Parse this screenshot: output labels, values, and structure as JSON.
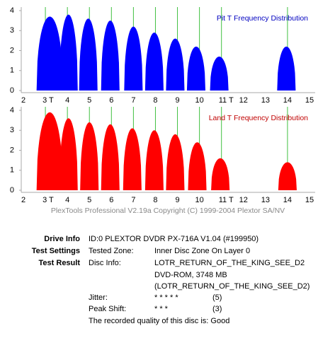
{
  "chart_data": [
    {
      "type": "area",
      "title": "Pit T Frequency Distribution",
      "title_color": "#0000c0",
      "x": [
        3.2,
        4.05,
        4.95,
        5.95,
        7.0,
        7.95,
        8.9,
        9.85,
        10.9,
        13.95
      ],
      "series": [
        {
          "color": "#0000ff",
          "values": [
            3.7,
            3.8,
            3.6,
            3.5,
            3.2,
            2.9,
            2.6,
            2.2,
            1.7,
            2.2
          ]
        }
      ],
      "reference_lines": [
        3,
        4,
        5,
        6,
        7,
        8,
        9,
        10,
        11,
        14
      ],
      "reference_color": "#40c040",
      "xlim": [
        2,
        15
      ],
      "ylim": [
        0,
        4
      ],
      "xticks": [
        2,
        {
          "value": 3,
          "label": "3 T"
        },
        4,
        5,
        6,
        7,
        8,
        9,
        10,
        {
          "value": 11,
          "label": "11 T"
        },
        12,
        13,
        14,
        15
      ],
      "yticks": [
        0,
        1,
        2,
        3,
        4
      ]
    },
    {
      "type": "area",
      "title": "Land T Frequency Distribution",
      "title_color": "#c00000",
      "x": [
        3.2,
        4.05,
        5.0,
        5.95,
        6.95,
        7.95,
        8.9,
        9.9,
        10.95,
        14.0
      ],
      "series": [
        {
          "color": "#ff0000",
          "values": [
            3.9,
            3.6,
            3.4,
            3.3,
            3.1,
            3.0,
            2.8,
            2.4,
            1.6,
            1.4
          ]
        }
      ],
      "reference_lines": [
        3,
        4,
        5,
        6,
        7,
        8,
        9,
        10,
        11,
        14
      ],
      "reference_color": "#40c040",
      "xlim": [
        2,
        15
      ],
      "ylim": [
        0,
        4
      ],
      "xticks": [
        2,
        {
          "value": 3,
          "label": "3 T"
        },
        4,
        5,
        6,
        7,
        8,
        9,
        10,
        {
          "value": 11,
          "label": "11 T"
        },
        12,
        13,
        14,
        15
      ],
      "yticks": [
        0,
        1,
        2,
        3,
        4
      ]
    }
  ],
  "copyright": "PlexTools Professional V2.19a Copyright (C) 1999-2004 Plextor SA/NV",
  "info": {
    "drive_info": {
      "label": "Drive Info",
      "value": "ID:0 PLEXTOR DVDR PX-716A V1.04 (#199950)"
    },
    "test_settings": {
      "label": "Test Settings",
      "key": "Tested Zone:",
      "value": "Inner Disc Zone On Layer 0"
    },
    "test_result": {
      "label": "Test Result",
      "key": "Disc Info:",
      "lines": [
        "LOTR_RETURN_OF_THE_KING_SEE_D2",
        "DVD-ROM, 3748 MB",
        "(LOTR_RETURN_OF_THE_KING_SEE_D2)"
      ]
    },
    "jitter": {
      "key": "Jitter:",
      "stars": "* * * * *",
      "score": "(5)"
    },
    "peak_shift": {
      "key": "Peak Shift:",
      "stars": "* * *",
      "score": "(3)"
    },
    "quality": "The recorded quality of this disc is: Good"
  }
}
